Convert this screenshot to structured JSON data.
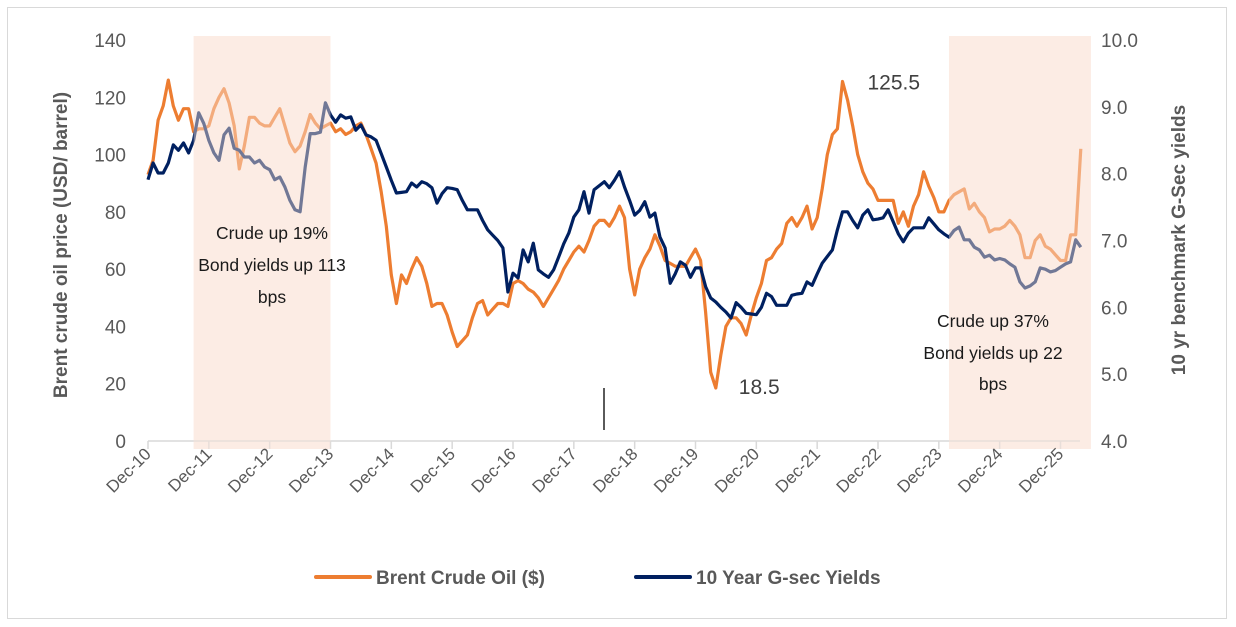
{
  "chart_data": {
    "type": "line",
    "title": "",
    "xlabel": "",
    "ylabel_left": "Brent crude oil price (USD/ barrel)",
    "ylabel_right": "10 yr benchmark G-Sec yields",
    "ylim_left": [
      0,
      140
    ],
    "yticks_left": [
      "0",
      "20",
      "40",
      "60",
      "80",
      "100",
      "120",
      "140"
    ],
    "ylim_right": [
      4.0,
      10.0
    ],
    "yticks_right": [
      "4.0",
      "5.0",
      "6.0",
      "7.0",
      "8.0",
      "9.0",
      "10.0"
    ],
    "xticks": [
      "Dec-10",
      "Dec-11",
      "Dec-12",
      "Dec-13",
      "Dec-14",
      "Dec-15",
      "Dec-16",
      "Dec-17",
      "Dec-18",
      "Dec-19",
      "Dec-20",
      "Dec-21",
      "Dec-22",
      "Dec-23",
      "Dec-24",
      "Dec-25"
    ],
    "grid": false,
    "legend_placement": "bottom",
    "dates": [
      "2010-12",
      "2011-01",
      "2011-02",
      "2011-03",
      "2011-04",
      "2011-05",
      "2011-06",
      "2011-07",
      "2011-08",
      "2011-09",
      "2011-10",
      "2011-11",
      "2011-12",
      "2012-01",
      "2012-02",
      "2012-03",
      "2012-04",
      "2012-05",
      "2012-06",
      "2012-07",
      "2012-08",
      "2012-09",
      "2012-10",
      "2012-11",
      "2012-12",
      "2013-01",
      "2013-02",
      "2013-03",
      "2013-04",
      "2013-05",
      "2013-06",
      "2013-07",
      "2013-08",
      "2013-09",
      "2013-10",
      "2013-11",
      "2013-12",
      "2014-01",
      "2014-02",
      "2014-03",
      "2014-04",
      "2014-05",
      "2014-06",
      "2014-07",
      "2014-08",
      "2014-09",
      "2014-10",
      "2014-11",
      "2014-12",
      "2015-01",
      "2015-02",
      "2015-03",
      "2015-04",
      "2015-05",
      "2015-06",
      "2015-07",
      "2015-08",
      "2015-09",
      "2015-10",
      "2015-11",
      "2015-12",
      "2016-01",
      "2016-02",
      "2016-03",
      "2016-04",
      "2016-05",
      "2016-06",
      "2016-07",
      "2016-08",
      "2016-09",
      "2016-10",
      "2016-11",
      "2016-12",
      "2017-01",
      "2017-02",
      "2017-03",
      "2017-04",
      "2017-05",
      "2017-06",
      "2017-07",
      "2017-08",
      "2017-09",
      "2017-10",
      "2017-11",
      "2017-12",
      "2018-01",
      "2018-02",
      "2018-03",
      "2018-04",
      "2018-05",
      "2018-06",
      "2018-07",
      "2018-08",
      "2018-09",
      "2018-10",
      "2018-11",
      "2018-12",
      "2019-01",
      "2019-02",
      "2019-03",
      "2019-04",
      "2019-05",
      "2019-06",
      "2019-07",
      "2019-08",
      "2019-09",
      "2019-10",
      "2019-11",
      "2019-12",
      "2020-01",
      "2020-02",
      "2020-03",
      "2020-04",
      "2020-05",
      "2020-06",
      "2020-07",
      "2020-08",
      "2020-09",
      "2020-10",
      "2020-11",
      "2020-12",
      "2021-01",
      "2021-02",
      "2021-03",
      "2021-04",
      "2021-05",
      "2021-06",
      "2021-07",
      "2021-08",
      "2021-09",
      "2021-10",
      "2021-11",
      "2021-12",
      "2022-01",
      "2022-02",
      "2022-03",
      "2022-04",
      "2022-05",
      "2022-06",
      "2022-07",
      "2022-08",
      "2022-09",
      "2022-10",
      "2022-11",
      "2022-12",
      "2023-01",
      "2023-02",
      "2023-03",
      "2023-04",
      "2023-05",
      "2023-06",
      "2023-07",
      "2023-08",
      "2023-09",
      "2023-10",
      "2023-11",
      "2023-12",
      "2024-01",
      "2024-02",
      "2024-03",
      "2024-04",
      "2024-05",
      "2024-06",
      "2024-07",
      "2024-08",
      "2024-09",
      "2024-10",
      "2024-11",
      "2024-12",
      "2025-01",
      "2025-02",
      "2025-03",
      "2025-04",
      "2025-05",
      "2025-06",
      "2025-07",
      "2025-08",
      "2025-09",
      "2025-10",
      "2025-11",
      "2025-12",
      "2026-01",
      "2026-02",
      "2026-03",
      "2026-04"
    ],
    "series": [
      {
        "name": "Brent Crude Oil ($)",
        "axis": "left",
        "color": "#ED7D31",
        "values": [
          93,
          98,
          112,
          117,
          126,
          117,
          112,
          116,
          116,
          108,
          109,
          109,
          110,
          116,
          120,
          123,
          118,
          110,
          95,
          103,
          113,
          113,
          111,
          110,
          110,
          113,
          116,
          110,
          104,
          101,
          103,
          108,
          114,
          111,
          109,
          110,
          111,
          108,
          109,
          107,
          108,
          110,
          111,
          107,
          102,
          97,
          87,
          75,
          58,
          48,
          58,
          55,
          60,
          64,
          61,
          55,
          47,
          48,
          48,
          44,
          38,
          33,
          35,
          37,
          43,
          48,
          49,
          44,
          46,
          48,
          48,
          47,
          55,
          56,
          55,
          53,
          52,
          50,
          47,
          50,
          53,
          56,
          60,
          63,
          66,
          68,
          66,
          70,
          75,
          77,
          77,
          75,
          78,
          82,
          78,
          60,
          51,
          60,
          64,
          67,
          72,
          68,
          63,
          62,
          61,
          61,
          61,
          64,
          67,
          63,
          45,
          24,
          18.5,
          30,
          40,
          43,
          43,
          41,
          37,
          44,
          50,
          55,
          63,
          64,
          67,
          69,
          76,
          78,
          75,
          78,
          82,
          74,
          78,
          88,
          100,
          107,
          109,
          125.5,
          119,
          110,
          100,
          94,
          90,
          88,
          84,
          84,
          84,
          84,
          76,
          80,
          75,
          82,
          86,
          94,
          89,
          85,
          80,
          80,
          84,
          86,
          87,
          88,
          81,
          83,
          80,
          78,
          73,
          74,
          74,
          75,
          77,
          75,
          72,
          64,
          64,
          70,
          72,
          68,
          67,
          65,
          63,
          63,
          72,
          72,
          102
        ]
      },
      {
        "name": "10 Year G-sec Yields",
        "axis": "right",
        "color": "#002060",
        "values": [
          7.91,
          8.16,
          8.01,
          8.01,
          8.16,
          8.43,
          8.35,
          8.46,
          8.31,
          8.5,
          8.91,
          8.75,
          8.5,
          8.31,
          8.2,
          8.58,
          8.68,
          8.38,
          8.35,
          8.25,
          8.25,
          8.16,
          8.2,
          8.1,
          8.06,
          7.91,
          7.95,
          7.8,
          7.6,
          7.46,
          7.43,
          8.1,
          8.6,
          8.6,
          8.62,
          9.06,
          8.88,
          8.77,
          8.88,
          8.83,
          8.85,
          8.65,
          8.73,
          8.58,
          8.55,
          8.5,
          8.3,
          8.1,
          7.9,
          7.71,
          7.72,
          7.73,
          7.86,
          7.8,
          7.88,
          7.85,
          7.79,
          7.56,
          7.7,
          7.79,
          7.78,
          7.76,
          7.6,
          7.46,
          7.46,
          7.46,
          7.3,
          7.16,
          7.08,
          7.0,
          6.89,
          6.23,
          6.51,
          6.44,
          6.86,
          6.68,
          6.96,
          6.56,
          6.5,
          6.45,
          6.56,
          6.75,
          6.95,
          7.11,
          7.35,
          7.46,
          7.73,
          7.41,
          7.76,
          7.82,
          7.88,
          7.79,
          7.9,
          8.03,
          7.8,
          7.6,
          7.38,
          7.45,
          7.58,
          7.35,
          7.41,
          7.05,
          6.89,
          6.36,
          6.5,
          6.68,
          6.63,
          6.45,
          6.59,
          6.59,
          6.31,
          6.14,
          6.08,
          6.0,
          5.93,
          5.84,
          6.07,
          6.0,
          5.91,
          5.9,
          5.89,
          6.0,
          6.21,
          6.16,
          6.03,
          6.03,
          6.03,
          6.18,
          6.2,
          6.21,
          6.38,
          6.33,
          6.5,
          6.66,
          6.76,
          6.86,
          7.16,
          7.43,
          7.43,
          7.3,
          7.19,
          7.38,
          7.46,
          7.31,
          7.32,
          7.34,
          7.46,
          7.28,
          7.1,
          6.98,
          7.11,
          7.19,
          7.19,
          7.19,
          7.34,
          7.25,
          7.16,
          7.1,
          7.05,
          7.15,
          7.2,
          7.01,
          7.01,
          6.9,
          6.86,
          6.75,
          6.78,
          6.71,
          6.73,
          6.71,
          6.65,
          6.6,
          6.38,
          6.29,
          6.32,
          6.38,
          6.59,
          6.57,
          6.53,
          6.55,
          6.6,
          6.65,
          6.68,
          7.01,
          6.9
        ]
      }
    ],
    "shaded_periods": [
      {
        "from": "2011-09",
        "to": "2013-12",
        "color": "#FBE5DA",
        "text": [
          "Crude up 19%",
          "Bond yields up 113",
          "bps"
        ]
      },
      {
        "from": "2024-02",
        "to": "2026-06",
        "color": "#FBE5DA",
        "text": [
          "Crude up 37%",
          "Bond yields up 22",
          "bps"
        ]
      }
    ],
    "data_labels": [
      {
        "date": "2022-05",
        "value": 125.5,
        "text": "125.5"
      },
      {
        "date": "2020-04",
        "value": 18.5,
        "text": "18.5"
      }
    ]
  }
}
